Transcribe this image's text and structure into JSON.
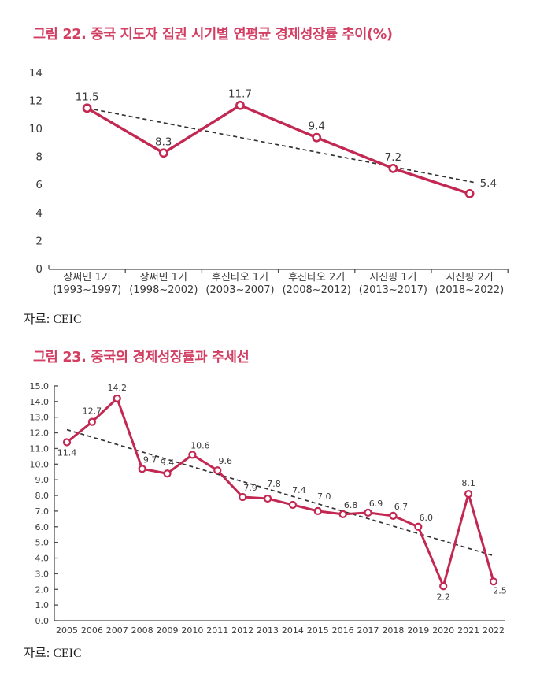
{
  "colors": {
    "title_accent": "#d23f63",
    "series_line": "#c22852",
    "marker_fill": "#ffffff",
    "trend_line": "#333333",
    "axis": "#4d4d4d",
    "text": "#3a3a3a"
  },
  "chart_data": [
    {
      "type": "line",
      "title": "그림 22. 중국 지도자 집권 시기별 연평균 경제성장률 추이(%)",
      "source": "자료: CEIC",
      "categories": [
        "장쩌민 1기\n(1993~1997)",
        "장쩌민 1기\n(1998~2002)",
        "후진타오 1기\n(2003~2007)",
        "후진타오 2기\n(2008~2012)",
        "시진핑 1기\n(2013~2017)",
        "시진핑 2기\n(2018~2022)"
      ],
      "values": [
        11.5,
        8.3,
        11.7,
        9.4,
        7.2,
        5.4
      ],
      "ylim": [
        0,
        14
      ],
      "ytick_step": 2,
      "ytick_decimals": 0,
      "grid": false,
      "legend": null,
      "trendline": {
        "style": "dashed",
        "y_start": 11.5,
        "y_end": 6.2
      },
      "label_pos": [
        "above",
        "above",
        "above",
        "above",
        "above",
        "right"
      ]
    },
    {
      "type": "line",
      "title": "그림 23. 중국의 경제성장률과 추세선",
      "source": "자료: CEIC",
      "categories": [
        "2005",
        "2006",
        "2007",
        "2008",
        "2009",
        "2010",
        "2011",
        "2012",
        "2013",
        "2014",
        "2015",
        "2016",
        "2017",
        "2018",
        "2019",
        "2020",
        "2021",
        "2022"
      ],
      "values": [
        11.4,
        12.7,
        14.2,
        9.7,
        9.4,
        10.6,
        9.6,
        7.9,
        7.8,
        7.4,
        7.0,
        6.8,
        6.9,
        6.7,
        6.0,
        2.2,
        8.1,
        2.5
      ],
      "ylim": [
        0,
        15
      ],
      "ytick_step": 1,
      "ytick_decimals": 1,
      "grid": false,
      "legend": null,
      "trendline": {
        "style": "dashed",
        "y_start": 12.2,
        "y_end": 4.15
      },
      "label_pos": [
        "below",
        "above",
        "above",
        "above-right",
        "above",
        "above-right",
        "above-right",
        "above-right",
        "above2",
        "above2",
        "above2",
        "above-right",
        "above-right",
        "above-right",
        "above-right",
        "below",
        "above",
        "below-right"
      ]
    }
  ]
}
